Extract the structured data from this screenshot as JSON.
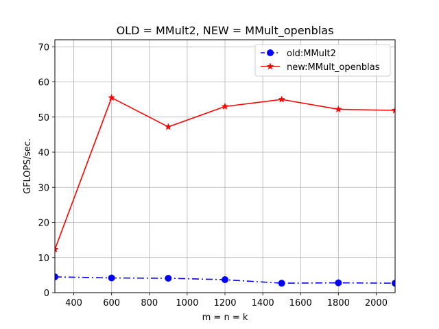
{
  "chart_data": {
    "type": "line",
    "title": "OLD = MMult2, NEW = MMult_openblas",
    "xlabel": "m = n = k",
    "ylabel": "GFLOPS/sec.",
    "xlim": [
      300,
      2100
    ],
    "ylim": [
      0,
      72
    ],
    "xticks": [
      400,
      600,
      800,
      1000,
      1200,
      1400,
      1600,
      1800,
      2000
    ],
    "yticks": [
      0,
      10,
      20,
      30,
      40,
      50,
      60,
      70
    ],
    "grid": true,
    "legend_position": "top-right",
    "x": [
      300,
      600,
      900,
      1200,
      1500,
      1800,
      2100
    ],
    "series": [
      {
        "name": "old:MMult2",
        "values": [
          4.5,
          4.2,
          4.1,
          3.7,
          2.7,
          2.8,
          2.7
        ],
        "color": "#0000ff",
        "linestyle": "dashdot",
        "marker": "circle"
      },
      {
        "name": "new:MMult_openblas",
        "values": [
          12.3,
          55.5,
          47.2,
          53.0,
          55.0,
          52.2,
          51.9
        ],
        "color": "#ff0000",
        "linestyle": "solid",
        "marker": "star"
      }
    ]
  }
}
